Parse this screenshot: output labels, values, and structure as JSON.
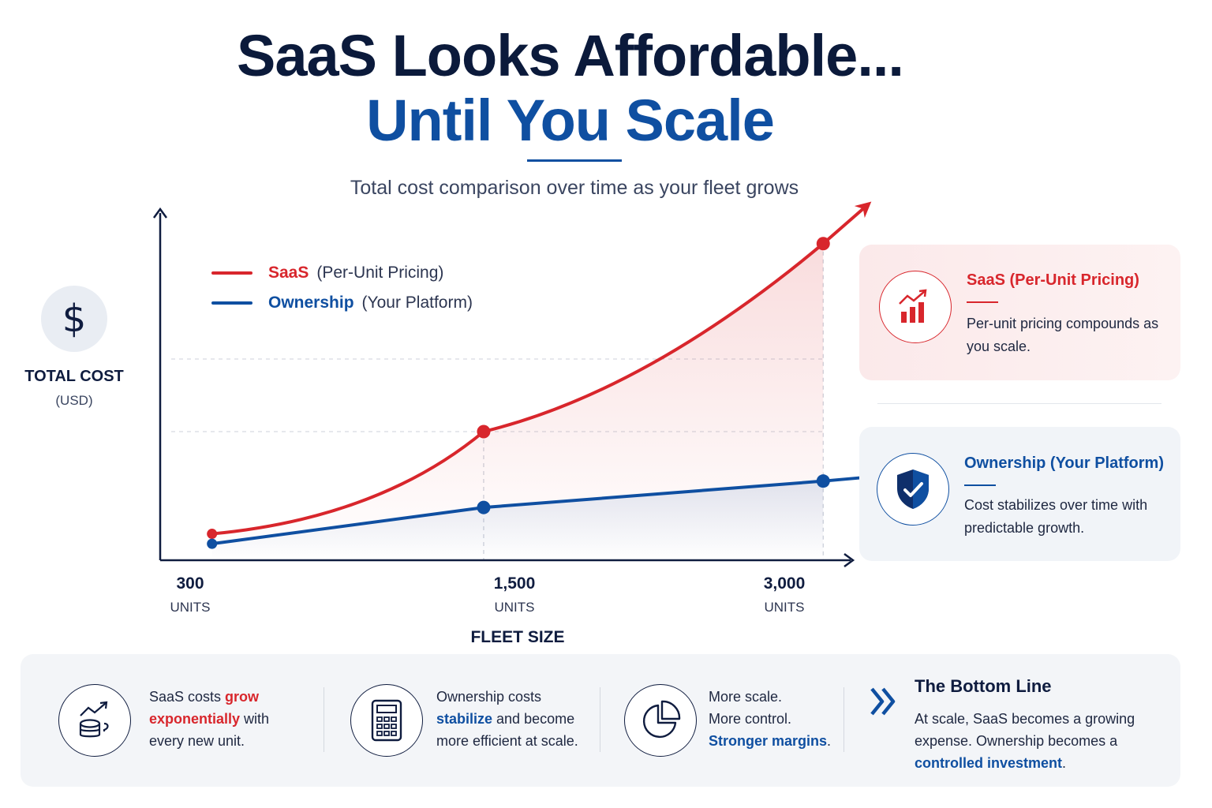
{
  "header": {
    "title_line1": "SaaS Looks Affordable...",
    "title_line2": "Until You Scale",
    "subtitle": "Total cost comparison over time as your fleet grows"
  },
  "colors": {
    "saas": "#d8262c",
    "ownership": "#0f4fa1",
    "navy": "#0f1c3f"
  },
  "icons": {
    "y_axis": "dollar-icon",
    "saas_card": "bar-chart-up-icon",
    "ownership_card": "shield-check-icon",
    "bottom_1": "coins-trend-icon",
    "bottom_2": "calculator-icon",
    "bottom_3": "pie-chart-icon",
    "bottom_4": "double-chevron-icon"
  },
  "chart_data": {
    "type": "line",
    "title": "",
    "xlabel": "FLEET SIZE",
    "ylabel": "TOTAL COST",
    "ylabel_unit": "(USD)",
    "dollar_glyph": "$",
    "x_ticks": [
      {
        "value": "300",
        "unit": "UNITS"
      },
      {
        "value": "1,500",
        "unit": "UNITS"
      },
      {
        "value": "3,000",
        "unit": "UNITS"
      }
    ],
    "x": [
      300,
      1500,
      3000
    ],
    "xlim": [
      200,
      3250
    ],
    "ylim": [
      0,
      100
    ],
    "y_scale_note": "relative, no y tick labels",
    "grid": "dashed",
    "legend": "top-left",
    "series": [
      {
        "name": "SaaS",
        "desc": "(Per-Unit Pricing)",
        "values": [
          8,
          39,
          96
        ],
        "trend": "exponential"
      },
      {
        "name": "Ownership",
        "desc": "(Your Platform)",
        "values": [
          5,
          16,
          24
        ],
        "trend": "linear"
      }
    ]
  },
  "cards": {
    "saas": {
      "title": "SaaS (Per-Unit Pricing)",
      "body": "Per-unit pricing compounds as you scale."
    },
    "ownership": {
      "title": "Ownership (Your Platform)",
      "body": "Cost stabilizes over time with predictable growth."
    }
  },
  "bottom": {
    "item1": {
      "pre": "SaaS costs ",
      "hl": "grow exponentially",
      "post": " with every new unit."
    },
    "item2": {
      "pre": "Ownership costs ",
      "hl": "stabilize",
      "post": " and become more efficient at scale."
    },
    "item3": {
      "line1": "More scale.",
      "line2": "More control.",
      "hl": "Stronger margins",
      "post": "."
    },
    "bottom_line": {
      "title": "The Bottom Line",
      "pre": "At scale, SaaS becomes a growing expense. Ownership becomes a ",
      "hl": "controlled investment",
      "post": "."
    }
  }
}
